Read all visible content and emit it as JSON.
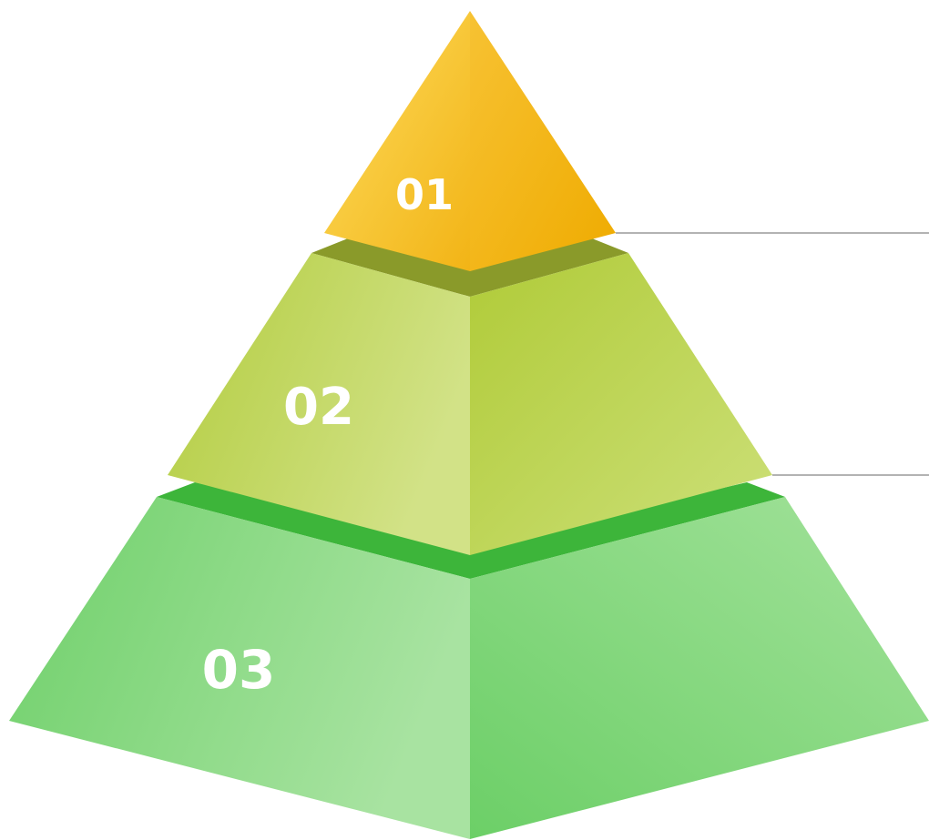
{
  "pyramid": {
    "tiers": [
      {
        "label": "01",
        "colors": {
          "light": "#fbd14a",
          "dark": "#f0ae00",
          "ridge": "#8a9a2a"
        }
      },
      {
        "label": "02",
        "colors": {
          "light": "#cfe08a",
          "dark": "#b2cc3e",
          "ridge": "#3db53a"
        }
      },
      {
        "label": "03",
        "colors": {
          "light": "#a6e3a0",
          "dark": "#6fd06a"
        }
      }
    ],
    "connector_color": "#9a9a9a"
  }
}
